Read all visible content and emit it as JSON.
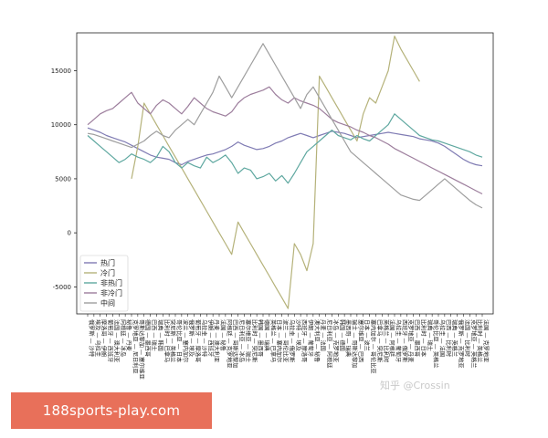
{
  "banner": {
    "text": "188sports-play.com"
  },
  "watermark": {
    "text": "知乎 @Crossin"
  },
  "chart_data": {
    "type": "line",
    "title": "",
    "xlabel": "",
    "ylabel": "",
    "ylim": [
      -7500,
      18500
    ],
    "yticks": [
      -5000,
      0,
      5000,
      10000,
      15000
    ],
    "grid": false,
    "legend_position": "lower-left",
    "categories": [
      "俄罗斯 — 沙特",
      "埃及 — 乌拉圭",
      "摩洛哥 — 伊朗",
      "葡萄牙 — 西班牙",
      "法国 — 澳大利亚",
      "阿根廷 — 冰岛",
      "秘鲁 — 丹麦",
      "克罗地亚 — 尼日利亚",
      "哥斯达黎加 — 塞尔维亚",
      "德国 — 墨西哥",
      "巴西 — 瑞士",
      "瑞典 — 韩国",
      "比利时 — 巴拿马",
      "突尼斯 — 英格兰",
      "哥伦比亚 — 日本",
      "波兰 — 塞内加尔",
      "俄罗斯 — 埃及",
      "葡萄牙 — 摩洛哥",
      "乌拉圭 — 沙特",
      "伊朗 — 西班牙",
      "丹麦 — 澳大利亚",
      "法国 — 秘鲁",
      "阿根廷 — 克罗地亚",
      "巴西 — 哥斯达黎加",
      "尼日利亚 — 冰岛",
      "塞尔维亚 — 瑞士",
      "比利时 — 突尼斯",
      "韩国 — 墨西哥",
      "德国 — 瑞典",
      "英格兰 — 巴拿马",
      "日本 — 塞内加尔",
      "波兰 — 哥伦比亚",
      "乌拉圭 — 俄罗斯",
      "沙特 — 埃及",
      "西班牙 — 摩洛哥",
      "伊朗 — 葡萄牙",
      "澳大利亚 — 秘鲁",
      "丹麦 — 法国",
      "尼日利亚 — 阿根廷",
      "冰岛 — 克罗地亚",
      "韩国 — 德国",
      "墨西哥 — 瑞典",
      "瑞士 — 哥斯达黎加",
      "塞尔维亚 — 巴西",
      "日本 — 波兰",
      "塞内加尔 — 哥伦比亚",
      "巴拿马 — 突尼斯",
      "英格兰 — 比利时",
      "法国 — 阿根廷",
      "乌拉圭 — 葡萄牙",
      "西班牙 — 俄罗斯",
      "克罗地亚 — 丹麦",
      "巴西 — 墨西哥",
      "比利时 — 日本",
      "瑞典 — 瑞士",
      "哥伦比亚 — 英格兰",
      "乌拉圭 — 法国",
      "巴西 — 比利时",
      "瑞典 — 英格兰",
      "俄罗斯 — 克罗地亚",
      "法国 — 比利时",
      "克罗地亚 — 英格兰",
      "比利时 — 英格兰",
      "法国 — 克罗地亚"
    ],
    "series": [
      {
        "name": "热门",
        "color": "#7f7bb3",
        "values": [
          9700,
          9500,
          9300,
          9000,
          8800,
          8600,
          8400,
          8100,
          7800,
          7500,
          7200,
          7000,
          6900,
          6800,
          6500,
          6300,
          6600,
          6800,
          7000,
          7200,
          7300,
          7500,
          7700,
          8000,
          8400,
          8100,
          7900,
          7700,
          7800,
          8000,
          8300,
          8500,
          8800,
          9000,
          9200,
          9000,
          8800,
          9000,
          9200,
          9400,
          9300,
          9200,
          9000,
          8800,
          8900,
          9000,
          9100,
          9200,
          9300,
          9200,
          9100,
          9000,
          8900,
          8700,
          8600,
          8500,
          8300,
          8000,
          7600,
          7200,
          6800,
          6500,
          6300,
          6200
        ]
      },
      {
        "name": "冷门",
        "color": "#b5b27a",
        "values": [
          null,
          null,
          null,
          null,
          null,
          null,
          null,
          5000,
          8000,
          12000,
          11000,
          10000,
          9000,
          8000,
          7000,
          6000,
          5000,
          4000,
          3000,
          2000,
          1000,
          0,
          -1000,
          -2000,
          1000,
          0,
          -1000,
          -2000,
          -3000,
          -4000,
          -5000,
          -6000,
          -7000,
          -1000,
          -2000,
          -3500,
          -1000,
          14500,
          13500,
          12500,
          11500,
          10500,
          9500,
          8500,
          11000,
          12500,
          12000,
          13500,
          15000,
          18200,
          17000,
          16000,
          15000,
          14000,
          null,
          null,
          null,
          null,
          null,
          null,
          null,
          null,
          null,
          null
        ]
      },
      {
        "name": "非热门",
        "color": "#5fa8a0",
        "values": [
          9000,
          8500,
          8000,
          7500,
          7000,
          6500,
          6800,
          7300,
          7000,
          6800,
          6500,
          7000,
          8000,
          7500,
          6500,
          6000,
          6500,
          6200,
          6000,
          7000,
          6500,
          6800,
          7200,
          6500,
          5500,
          6000,
          5800,
          5000,
          5200,
          5500,
          4800,
          5300,
          4600,
          5500,
          6500,
          7500,
          8000,
          8500,
          9000,
          9500,
          9000,
          8800,
          8600,
          9000,
          8700,
          8500,
          9000,
          9500,
          10000,
          11000,
          10500,
          10000,
          9500,
          9000,
          8800,
          8600,
          8500,
          8300,
          8100,
          7900,
          7700,
          7500,
          7200,
          7000
        ]
      },
      {
        "name": "非冷门",
        "color": "#9c7d9c",
        "values": [
          10000,
          10500,
          11000,
          11300,
          11500,
          12000,
          12500,
          13000,
          12000,
          11500,
          11000,
          11800,
          12300,
          12000,
          11500,
          11000,
          11700,
          12500,
          12000,
          11500,
          11200,
          11000,
          10800,
          11200,
          12000,
          12500,
          12800,
          13000,
          13200,
          13500,
          12800,
          12300,
          12000,
          12500,
          12200,
          12000,
          11800,
          11500,
          11000,
          10500,
          10200,
          10000,
          9800,
          9500,
          9300,
          9000,
          8800,
          8500,
          8200,
          7800,
          7500,
          7200,
          6900,
          6600,
          6300,
          6000,
          5700,
          5400,
          5100,
          4800,
          4500,
          4200,
          3900,
          3600
        ]
      },
      {
        "name": "中间",
        "color": "#9e9e9e",
        "values": [
          9200,
          9100,
          8900,
          8700,
          8500,
          8300,
          8100,
          7900,
          8200,
          8500,
          9000,
          9400,
          9000,
          8800,
          9500,
          10000,
          10500,
          10000,
          11000,
          12000,
          13000,
          14500,
          13500,
          12500,
          13500,
          14500,
          15500,
          16500,
          17500,
          16500,
          15500,
          14500,
          13500,
          12500,
          11500,
          12800,
          13500,
          12500,
          11500,
          10500,
          9500,
          8500,
          7500,
          7000,
          6500,
          6000,
          5500,
          5000,
          4500,
          4000,
          3500,
          3300,
          3100,
          3000,
          3500,
          4000,
          4500,
          5000,
          4500,
          4000,
          3500,
          3000,
          2600,
          2300
        ]
      }
    ]
  }
}
